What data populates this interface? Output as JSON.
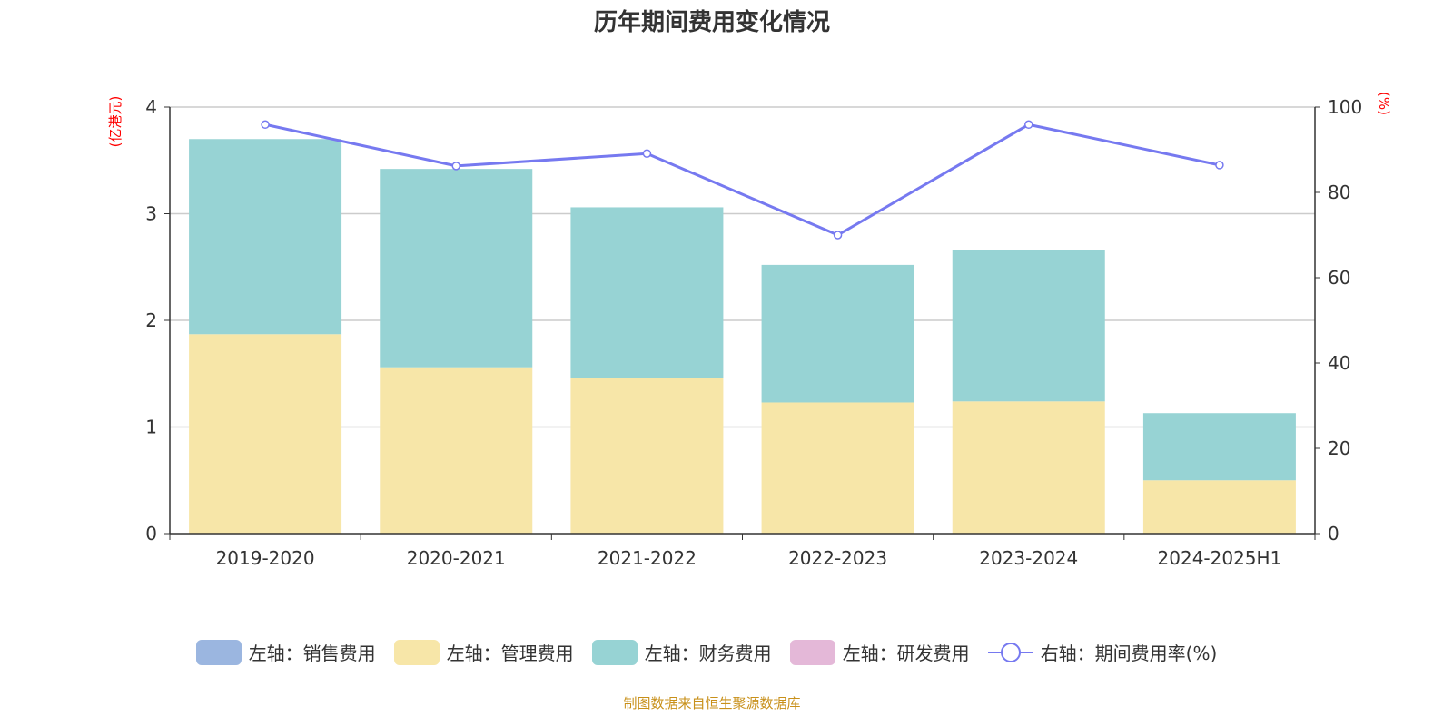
{
  "title": "历年期间费用变化情况",
  "source": "制图数据来自恒生聚源数据库",
  "chart_data": {
    "type": "bar",
    "stacked": true,
    "categories": [
      "2019-2020",
      "2020-2021",
      "2021-2022",
      "2022-2023",
      "2023-2024",
      "2024-2025H1"
    ],
    "left_axis": {
      "label": "(亿港元)",
      "ylim": [
        0,
        4
      ],
      "ticks": [
        "0",
        "1",
        "2",
        "3",
        "4"
      ]
    },
    "right_axis": {
      "label": "(%)",
      "ylim": [
        0,
        100
      ],
      "ticks": [
        "0",
        "20",
        "40",
        "60",
        "80",
        "100"
      ]
    },
    "grid": true,
    "legend_position": "bottom",
    "series": [
      {
        "name": "左轴：销售费用",
        "type": "bar",
        "color": "#9bb6e0",
        "values": [
          0,
          0,
          0,
          0,
          0,
          0
        ]
      },
      {
        "name": "左轴：管理费用",
        "type": "bar",
        "color": "#f7e6a8",
        "values": [
          1.87,
          1.56,
          1.46,
          1.23,
          1.24,
          0.5
        ]
      },
      {
        "name": "左轴：财务费用",
        "type": "bar",
        "color": "#97d3d4",
        "values": [
          1.83,
          1.86,
          1.6,
          1.29,
          1.42,
          0.63
        ]
      },
      {
        "name": "左轴：研发费用",
        "type": "bar",
        "color": "#e4b8d8",
        "values": [
          0,
          0,
          0,
          0,
          0,
          0
        ]
      },
      {
        "name": "右轴：期间费用率(%)",
        "type": "line",
        "axis": "right",
        "color": "#7679f0",
        "values": [
          95.9,
          86.2,
          89.1,
          70.0,
          95.9,
          86.4
        ]
      }
    ]
  }
}
